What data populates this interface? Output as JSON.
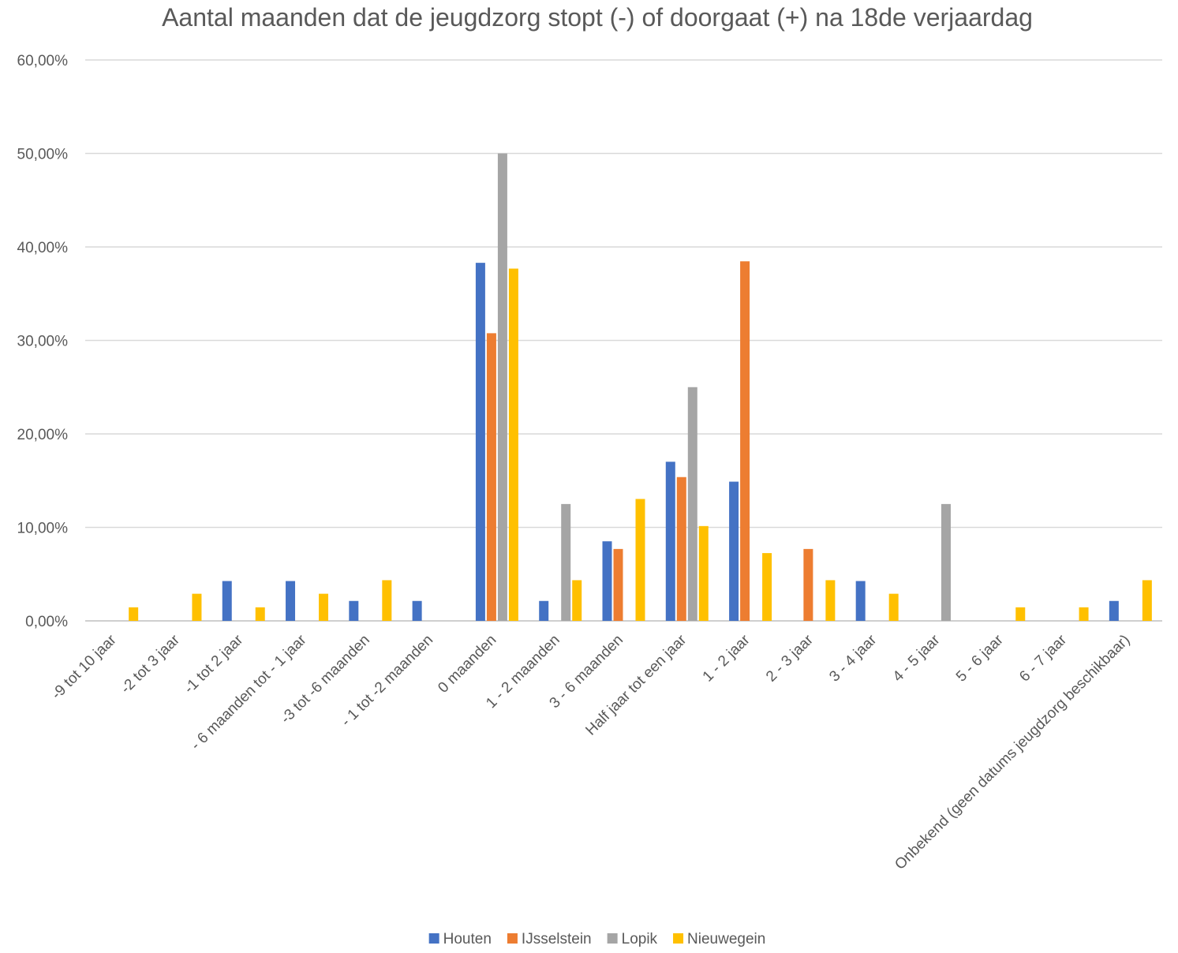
{
  "chart_data": {
    "type": "bar",
    "title": "Aantal maanden dat de jeugdzorg stopt (-) of doorgaat (+) na 18de verjaardag",
    "xlabel": "",
    "ylabel": "",
    "ylim": [
      0,
      0.6
    ],
    "y_ticks": [
      "0,00%",
      "10,00%",
      "20,00%",
      "30,00%",
      "40,00%",
      "50,00%",
      "60,00%"
    ],
    "grid": true,
    "legend_position": "bottom",
    "categories": [
      "-9 tot 10 jaar",
      "-2 tot 3 jaar",
      "-1 tot 2 jaar",
      "- 6 maanden tot - 1  jaar",
      "-3 tot -6 maanden",
      "- 1 tot -2 maanden",
      "0 maanden",
      "1 - 2 maanden",
      "3 - 6 maanden",
      "Half jaar tot een jaar",
      "1 - 2 jaar",
      "2 - 3 jaar",
      "3 - 4 jaar",
      "4 - 5 jaar",
      "5 - 6 jaar",
      "6 - 7 jaar",
      "Onbekend (geen datums jeugdzorg beschikbaar)"
    ],
    "series": [
      {
        "name": "Houten",
        "color": "#4472C4",
        "values": [
          0,
          0,
          0.0426,
          0.0426,
          0.0213,
          0.0213,
          0.383,
          0.0213,
          0.0851,
          0.1702,
          0.1489,
          0,
          0.0426,
          0,
          0,
          0,
          0.0213
        ]
      },
      {
        "name": "IJsselstein",
        "color": "#ED7D31",
        "values": [
          0,
          0,
          0,
          0,
          0,
          0,
          0.3077,
          0,
          0.0769,
          0.1538,
          0.3846,
          0.0769,
          0,
          0,
          0,
          0,
          0
        ]
      },
      {
        "name": "Lopik",
        "color": "#A5A5A5",
        "values": [
          0,
          0,
          0,
          0,
          0,
          0,
          0.5,
          0.125,
          0,
          0.25,
          0,
          0,
          0,
          0.125,
          0,
          0,
          0
        ]
      },
      {
        "name": "Nieuwegein",
        "color": "#FFC000",
        "values": [
          0.0145,
          0.029,
          0.0145,
          0.029,
          0.0435,
          0,
          0.3768,
          0.0435,
          0.1304,
          0.1014,
          0.0725,
          0.0435,
          0.029,
          0,
          0.0145,
          0.0145,
          0.0435
        ]
      }
    ]
  }
}
